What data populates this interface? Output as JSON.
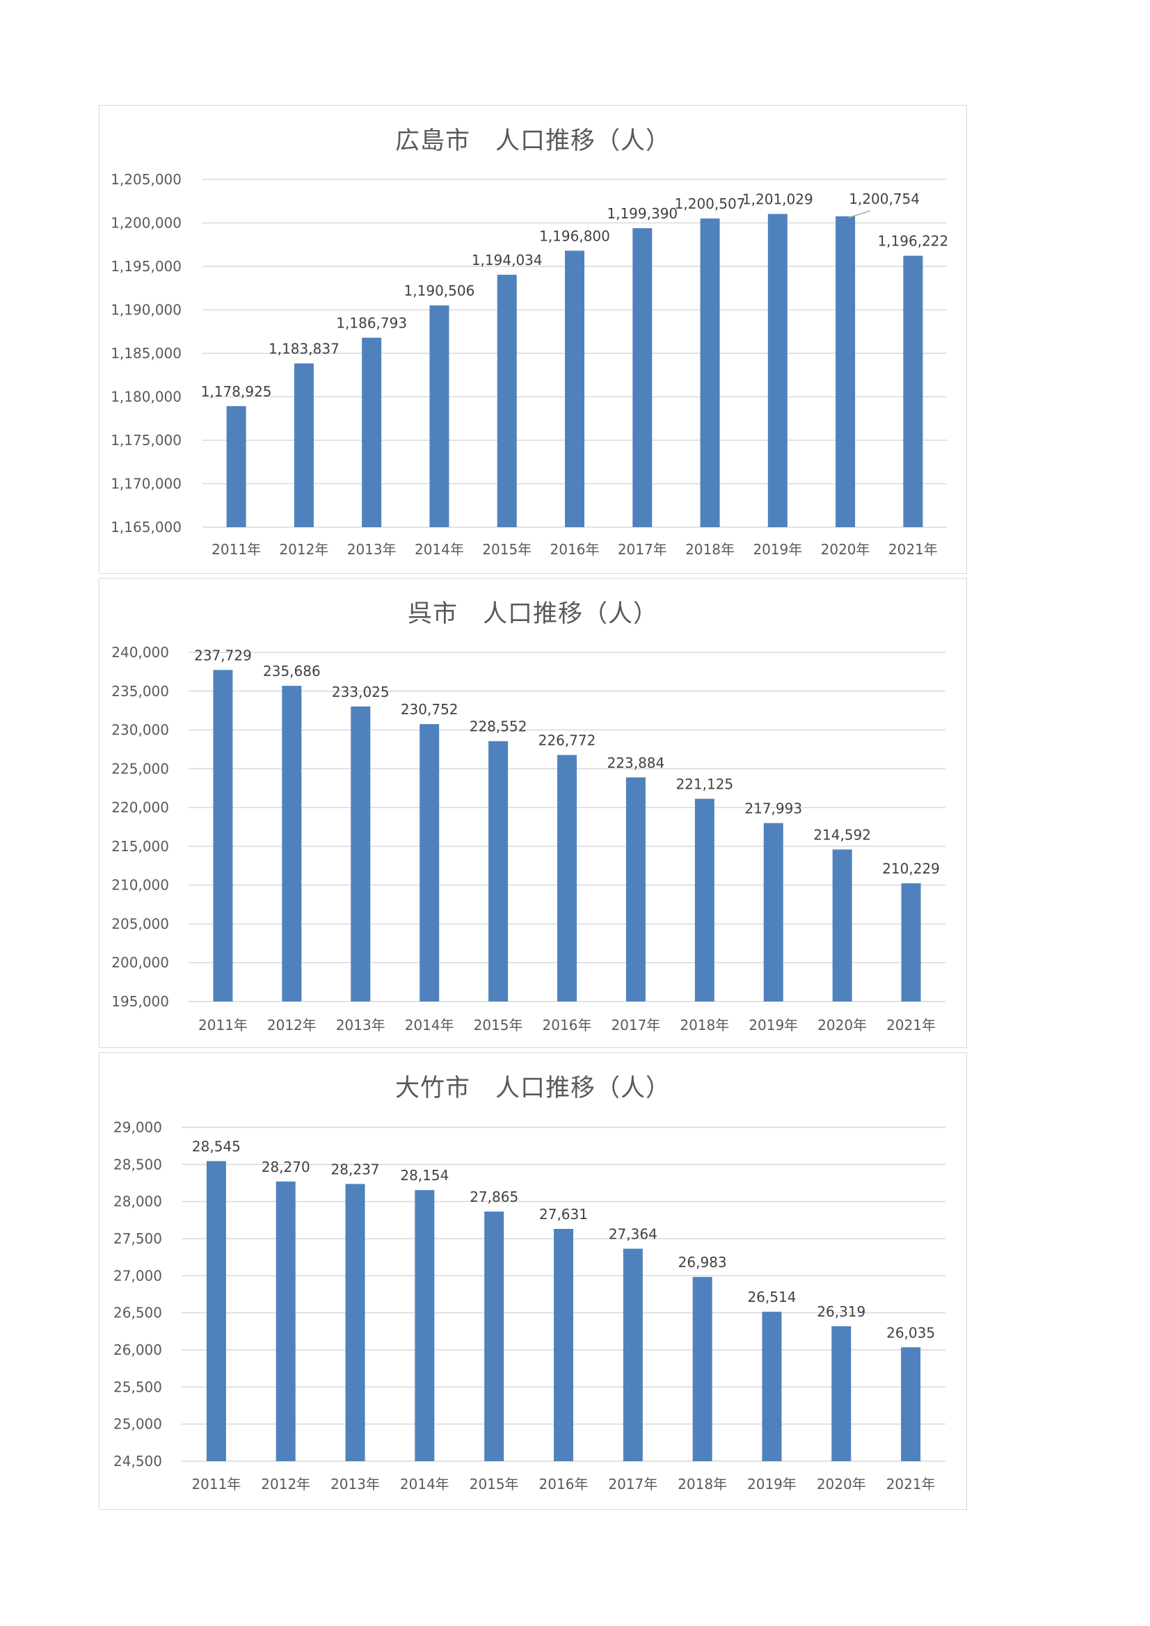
{
  "chart_data": [
    {
      "type": "bar",
      "title": "広島市　人口推移（人）",
      "categories": [
        "2011年",
        "2012年",
        "2013年",
        "2014年",
        "2015年",
        "2016年",
        "2017年",
        "2018年",
        "2019年",
        "2020年",
        "2021年"
      ],
      "values": [
        1178925,
        1183837,
        1186793,
        1190506,
        1194034,
        1196800,
        1199390,
        1200507,
        1201029,
        1200754,
        1196222
      ],
      "value_labels": [
        "1,178,925",
        "1,183,837",
        "1,186,793",
        "1,190,506",
        "1,194,034",
        "1,196,800",
        "1,199,390",
        "1,200,507",
        "1,201,029",
        "1,200,754",
        "1,196,222"
      ],
      "yticks": [
        "1,165,000",
        "1,170,000",
        "1,175,000",
        "1,180,000",
        "1,185,000",
        "1,190,000",
        "1,195,000",
        "1,200,000",
        "1,205,000"
      ],
      "ylim": [
        1165000,
        1205000
      ],
      "xlabel": "",
      "ylabel": "",
      "grid": true,
      "legend": "none",
      "color": "#4f81bd"
    },
    {
      "type": "bar",
      "title": "呉市　人口推移（人）",
      "categories": [
        "2011年",
        "2012年",
        "2013年",
        "2014年",
        "2015年",
        "2016年",
        "2017年",
        "2018年",
        "2019年",
        "2020年",
        "2021年"
      ],
      "values": [
        237729,
        235686,
        233025,
        230752,
        228552,
        226772,
        223884,
        221125,
        217993,
        214592,
        210229
      ],
      "value_labels": [
        "237,729",
        "235,686",
        "233,025",
        "230,752",
        "228,552",
        "226,772",
        "223,884",
        "221,125",
        "217,993",
        "214,592",
        "210,229"
      ],
      "yticks": [
        "195,000",
        "200,000",
        "205,000",
        "210,000",
        "215,000",
        "220,000",
        "225,000",
        "230,000",
        "235,000",
        "240,000"
      ],
      "ylim": [
        195000,
        240000
      ],
      "xlabel": "",
      "ylabel": "",
      "grid": true,
      "legend": "none",
      "color": "#4f81bd"
    },
    {
      "type": "bar",
      "title": "大竹市　人口推移（人）",
      "categories": [
        "2011年",
        "2012年",
        "2013年",
        "2014年",
        "2015年",
        "2016年",
        "2017年",
        "2018年",
        "2019年",
        "2020年",
        "2021年"
      ],
      "values": [
        28545,
        28270,
        28237,
        28154,
        27865,
        27631,
        27364,
        26983,
        26514,
        26319,
        26035
      ],
      "value_labels": [
        "28,545",
        "28,270",
        "28,237",
        "28,154",
        "27,865",
        "27,631",
        "27,364",
        "26,983",
        "26,514",
        "26,319",
        "26,035"
      ],
      "yticks": [
        "24,500",
        "25,000",
        "25,500",
        "26,000",
        "26,500",
        "27,000",
        "27,500",
        "28,000",
        "28,500",
        "29,000"
      ],
      "ylim": [
        24500,
        29000
      ],
      "xlabel": "",
      "ylabel": "",
      "grid": true,
      "legend": "none",
      "color": "#4f81bd"
    }
  ]
}
